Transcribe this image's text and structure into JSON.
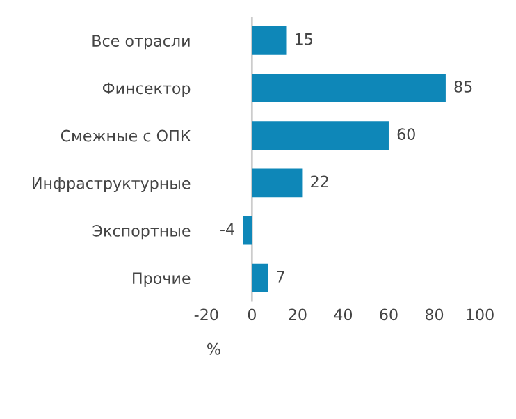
{
  "chart_data": {
    "type": "bar",
    "orientation": "horizontal",
    "categories": [
      "Все отрасли",
      "Финсектор",
      "Смежные с ОПК",
      "Инфраструктурные",
      "Экспортные",
      "Прочие"
    ],
    "values": [
      15,
      85,
      60,
      22,
      -4,
      7
    ],
    "color": "#0e87b8",
    "xlabel": "%",
    "xlim": [
      -20,
      100
    ],
    "xticks": [
      -20,
      0,
      20,
      40,
      60,
      80,
      100
    ],
    "ref_lines": [
      {
        "axis": "x",
        "value": 0,
        "color": "#cccccc"
      }
    ],
    "data_labels": true
  }
}
